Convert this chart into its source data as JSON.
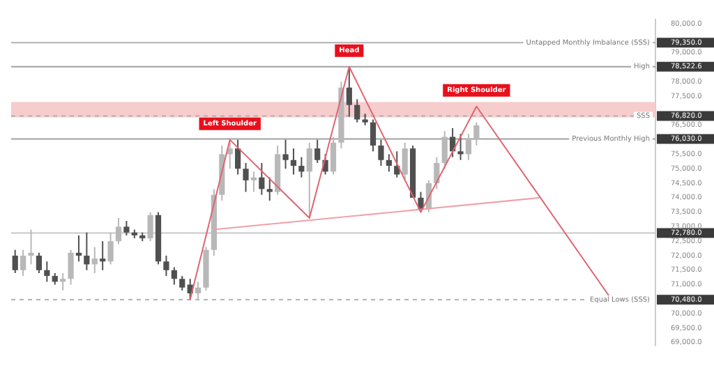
{
  "chart_data": {
    "type": "candlestick",
    "categories": [
      null,
      null,
      null,
      null,
      null,
      null,
      null,
      null,
      null,
      null,
      null,
      null,
      null,
      null,
      null,
      null,
      null,
      null,
      null,
      null,
      null,
      null,
      null,
      null,
      null,
      null,
      null,
      null,
      null,
      null,
      null,
      null,
      null,
      null,
      null,
      null,
      null,
      null,
      null,
      null,
      null,
      null,
      null,
      null,
      null,
      null,
      null,
      null,
      null,
      null,
      null,
      null,
      null,
      null,
      null,
      null,
      null,
      null,
      null,
      null,
      null,
      null,
      null,
      null,
      null,
      null,
      null,
      null,
      null,
      null,
      null,
      null,
      null,
      null,
      null,
      null,
      null,
      null,
      null,
      null,
      null
    ],
    "series": [
      {
        "ohlc": [
          [
            72000,
            72200,
            71400,
            71500
          ],
          [
            71500,
            72200,
            71300,
            72000
          ],
          [
            72000,
            72900,
            71700,
            72100
          ],
          [
            72000,
            72100,
            71400,
            71500
          ],
          [
            71500,
            71800,
            71100,
            71300
          ],
          [
            71300,
            71400,
            71000,
            71100
          ],
          [
            71100,
            71400,
            70800,
            71200
          ],
          [
            71200,
            72200,
            71000,
            72100
          ],
          [
            72100,
            72700,
            71800,
            72000
          ],
          [
            72000,
            72800,
            71500,
            71700
          ],
          [
            71700,
            72300,
            71400,
            71900
          ],
          [
            71900,
            72500,
            71500,
            71800
          ],
          [
            71800,
            72800,
            71700,
            72500
          ],
          [
            72500,
            73300,
            72400,
            73000
          ],
          [
            73000,
            73200,
            72700,
            72800
          ],
          [
            72800,
            72900,
            72600,
            72700
          ],
          [
            72700,
            72800,
            72500,
            72600
          ],
          [
            72600,
            73500,
            72500,
            73400
          ],
          [
            73400,
            73500,
            71700,
            71800
          ],
          [
            71800,
            72000,
            71300,
            71500
          ],
          [
            71500,
            71600,
            71000,
            71200
          ],
          [
            71200,
            71300,
            70800,
            70900
          ],
          [
            71000,
            71200,
            70480,
            70700
          ],
          [
            70700,
            71100,
            70500,
            70900
          ],
          [
            70900,
            72300,
            70800,
            72200
          ],
          [
            72200,
            74300,
            72000,
            74100
          ],
          [
            74100,
            75800,
            73900,
            75500
          ],
          [
            75500,
            76000,
            75000,
            75700
          ],
          [
            75700,
            76000,
            74800,
            75000
          ],
          [
            75000,
            75200,
            74200,
            74600
          ],
          [
            74600,
            74900,
            74200,
            74700
          ],
          [
            74700,
            75200,
            74100,
            74300
          ],
          [
            74300,
            74700,
            73900,
            74200
          ],
          [
            74200,
            75800,
            74100,
            75500
          ],
          [
            75500,
            76000,
            75000,
            75300
          ],
          [
            75300,
            75700,
            74800,
            75100
          ],
          [
            75100,
            75400,
            74700,
            74900
          ],
          [
            74900,
            75900,
            73300,
            75700
          ],
          [
            75700,
            76000,
            75200,
            75300
          ],
          [
            75300,
            75500,
            74800,
            74900
          ],
          [
            74900,
            76100,
            74800,
            75900
          ],
          [
            75900,
            78000,
            75700,
            77800
          ],
          [
            77800,
            78522.6,
            76800,
            77200
          ],
          [
            77200,
            77400,
            76600,
            76700
          ],
          [
            76700,
            76900,
            76500,
            76600
          ],
          [
            76600,
            76700,
            75600,
            75800
          ],
          [
            75800,
            76000,
            75100,
            75300
          ],
          [
            75300,
            75500,
            74900,
            75100
          ],
          [
            75100,
            75600,
            74700,
            74800
          ],
          [
            74800,
            75900,
            74600,
            75700
          ],
          [
            75700,
            75800,
            74000,
            74000
          ],
          [
            74000,
            74200,
            73500,
            73600
          ],
          [
            73600,
            74600,
            73500,
            74500
          ],
          [
            74500,
            75400,
            74300,
            75200
          ],
          [
            75200,
            76300,
            75000,
            76100
          ],
          [
            76100,
            76400,
            75400,
            75600
          ],
          [
            75600,
            76200,
            75300,
            75500
          ],
          [
            75500,
            76200,
            75300,
            76000
          ],
          [
            76000,
            76600,
            75800,
            76500
          ],
          null,
          null,
          null,
          null,
          null,
          null,
          null,
          null,
          null,
          null,
          null,
          null,
          null,
          null,
          null,
          null,
          null,
          null,
          null,
          null,
          null,
          null
        ]
      },
      {
        "type": "line",
        "color": "#e06470",
        "values": [
          null,
          null,
          null,
          null,
          null,
          null,
          null,
          null,
          null,
          null,
          null,
          null,
          null,
          null,
          null,
          null,
          null,
          null,
          null,
          null,
          null,
          null,
          70480,
          null,
          null,
          null,
          null,
          76000,
          null,
          null,
          null,
          null,
          null,
          null,
          null,
          null,
          null,
          73300,
          null,
          null,
          null,
          null,
          78522.6,
          null,
          null,
          null,
          null,
          null,
          null,
          null,
          null,
          73500,
          null,
          null,
          null,
          null,
          null,
          null,
          77150,
          null,
          null,
          null,
          null,
          null,
          null,
          null,
          null,
          null,
          null,
          null,
          null,
          null,
          null,
          null,
          null,
          70480,
          null,
          null,
          null,
          null,
          null
        ],
        "value_labels": [
          null,
          null,
          null,
          null,
          null,
          null,
          null,
          null,
          null,
          null,
          null,
          null,
          null,
          null,
          null,
          null,
          null,
          null,
          null,
          null,
          null,
          null,
          null,
          null,
          null,
          null,
          null,
          "Left Shoulder",
          null,
          null,
          null,
          null,
          null,
          null,
          null,
          null,
          null,
          null,
          null,
          null,
          null,
          null,
          "Head",
          null,
          null,
          null,
          null,
          null,
          null,
          null,
          null,
          null,
          null,
          null,
          null,
          null,
          null,
          null,
          "Right Shoulder",
          null,
          null,
          null,
          null,
          null,
          null,
          null,
          null,
          null,
          null,
          null,
          null,
          null,
          null,
          null,
          null,
          null,
          null,
          null,
          null,
          null,
          null
        ]
      },
      {
        "type": "line",
        "color": "#f0a0a8",
        "values": [
          null,
          null,
          null,
          null,
          null,
          null,
          null,
          null,
          null,
          null,
          null,
          null,
          null,
          null,
          null,
          null,
          null,
          null,
          null,
          null,
          null,
          null,
          null,
          null,
          null,
          72900,
          null,
          null,
          null,
          null,
          null,
          null,
          null,
          null,
          null,
          null,
          null,
          null,
          null,
          null,
          null,
          null,
          null,
          null,
          null,
          null,
          null,
          null,
          null,
          null,
          null,
          null,
          null,
          null,
          null,
          null,
          null,
          null,
          null,
          null,
          null,
          null,
          null,
          null,
          null,
          null,
          74000,
          null,
          null,
          null,
          null,
          null,
          null,
          null,
          null,
          null,
          null,
          null,
          null,
          null,
          null
        ]
      }
    ],
    "ylim": [
      68900,
      80150
    ],
    "yticks": [
      {
        "value": 69000,
        "label": "69,000.0"
      },
      {
        "value": 69500,
        "label": "69,500.0"
      },
      {
        "value": 70000,
        "label": "70,000.0"
      },
      {
        "value": 70480,
        "label": "70,480.0"
      },
      {
        "value": 71000,
        "label": "71,000.0"
      },
      {
        "value": 71500,
        "label": "71,500.0"
      },
      {
        "value": 72000,
        "label": "72,000.0"
      },
      {
        "value": 72500,
        "label": "72,500.0"
      },
      {
        "value": 72780,
        "label": "72,780.0"
      },
      {
        "value": 73000,
        "label": "73,000.0"
      },
      {
        "value": 73500,
        "label": "73,500.0"
      },
      {
        "value": 74000,
        "label": "74,000.0"
      },
      {
        "value": 74500,
        "label": "74,500.0"
      },
      {
        "value": 75000,
        "label": "75,000.0"
      },
      {
        "value": 75500,
        "label": "75,500.0"
      },
      {
        "value": 76030,
        "label": "76,030.0"
      },
      {
        "value": 76500,
        "label": "76,500.0"
      },
      {
        "value": 76820,
        "label": "76,820.0"
      },
      {
        "value": 77500,
        "label": "77,500.0"
      },
      {
        "value": 78000,
        "label": "78,000.0"
      },
      {
        "value": 78522.6,
        "label": "78,522.6"
      },
      {
        "value": 79000,
        "label": "79,000.0"
      },
      {
        "value": 79350,
        "label": "79,350.0"
      },
      {
        "value": 80000,
        "label": "80,000.0"
      }
    ],
    "ref_lines": [
      {
        "axis": "y",
        "value": 79350,
        "label": "Untapped Monthly Imbalance (SSS)",
        "color": "#b0b0b0"
      },
      {
        "axis": "y",
        "value": 78522.6,
        "label": "High",
        "color": "#a0a0a0"
      },
      {
        "axis": "y",
        "value": 76820,
        "label": "SSS",
        "color": "#b0b0b0",
        "line_style": "dashed"
      },
      {
        "axis": "y",
        "value": 76030,
        "label": "Previous Monthly High",
        "color": "#a0a0a0"
      },
      {
        "axis": "y",
        "value": 72780,
        "label": null,
        "color": "#c8c8c8"
      },
      {
        "axis": "y",
        "value": 70480,
        "label": "Equal Lows (SSS)",
        "color": "#b0b0b0",
        "line_style": "dashed"
      }
    ],
    "bands": [
      {
        "axis": "y",
        "from": 76770,
        "to": 77300,
        "color": "#f7cccc"
      }
    ],
    "grid": false,
    "legend": false,
    "tick_labels": "y"
  }
}
